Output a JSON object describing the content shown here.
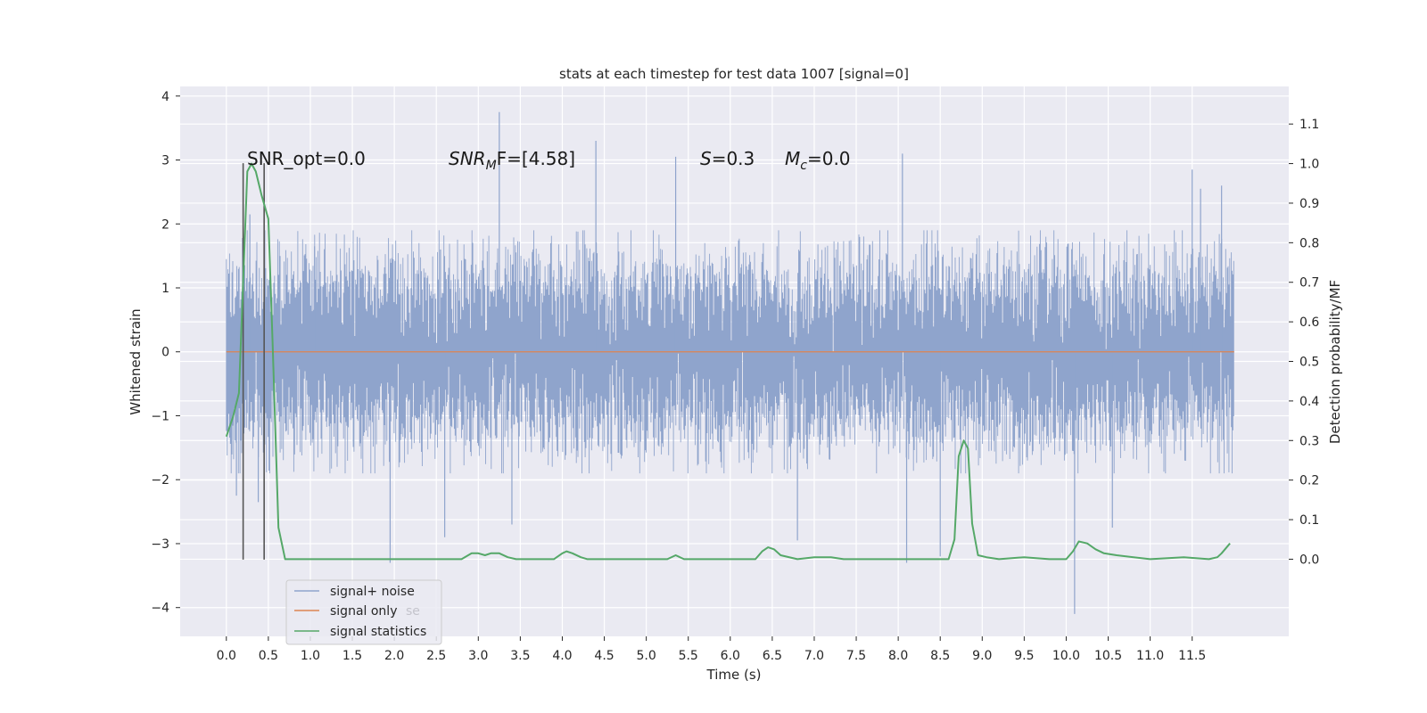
{
  "chart_data": {
    "type": "line",
    "title": "stats at each timestep for test data 1007 [signal=0]",
    "xlabel": "Time (s)",
    "ylabel": "Whitened strain",
    "y2label": "Detection probability/MF",
    "xlim": [
      -0.55,
      12.65
    ],
    "ylim": [
      -4.45,
      4.15
    ],
    "y2lim": [
      -0.195,
      1.195
    ],
    "x_ticks": [
      "0.0",
      "0.5",
      "1.0",
      "1.5",
      "2.0",
      "2.5",
      "3.0",
      "3.5",
      "4.0",
      "4.5",
      "5.0",
      "5.5",
      "6.0",
      "6.5",
      "7.0",
      "7.5",
      "8.0",
      "8.5",
      "9.0",
      "9.5",
      "10.0",
      "10.5",
      "11.0",
      "11.5"
    ],
    "y_ticks": [
      "4",
      "3",
      "2",
      "1",
      "0",
      "−1",
      "−2",
      "−3",
      "−4"
    ],
    "y2_ticks": [
      "1.1",
      "1.0",
      "0.9",
      "0.8",
      "0.7",
      "0.6",
      "0.5",
      "0.4",
      "0.3",
      "0.2",
      "0.1",
      "0.0"
    ],
    "grid": true,
    "legend_position": "lower-left",
    "series": [
      {
        "name": "signal+ noise",
        "color": "#8fa4cc",
        "axis": "left",
        "x_range": [
          0.0,
          12.0
        ],
        "envelope": [
          -1.9,
          1.9
        ],
        "spikes": [
          {
            "x": 0.12,
            "y": -2.25
          },
          {
            "x": 0.28,
            "y": 2.15
          },
          {
            "x": 0.38,
            "y": -2.35
          },
          {
            "x": 1.05,
            "y": 1.65
          },
          {
            "x": 1.95,
            "y": -3.3
          },
          {
            "x": 2.55,
            "y": 1.6
          },
          {
            "x": 2.6,
            "y": -2.9
          },
          {
            "x": 3.25,
            "y": 3.75
          },
          {
            "x": 3.4,
            "y": -2.7
          },
          {
            "x": 4.4,
            "y": 3.3
          },
          {
            "x": 5.35,
            "y": 3.05
          },
          {
            "x": 6.8,
            "y": -2.95
          },
          {
            "x": 8.05,
            "y": 3.1
          },
          {
            "x": 8.1,
            "y": -3.3
          },
          {
            "x": 8.5,
            "y": -3.2
          },
          {
            "x": 10.1,
            "y": -4.1
          },
          {
            "x": 10.55,
            "y": -2.75
          },
          {
            "x": 11.5,
            "y": 2.85
          },
          {
            "x": 11.6,
            "y": 2.55
          },
          {
            "x": 11.85,
            "y": 2.6
          }
        ]
      },
      {
        "name": "signal only",
        "color": "#dd8452",
        "axis": "left",
        "x": [
          0.0,
          12.0
        ],
        "y": [
          0.0,
          0.0
        ]
      },
      {
        "name": "signal statistics",
        "color": "#55a868",
        "axis": "right",
        "x": [
          0.0,
          0.08,
          0.15,
          0.25,
          0.3,
          0.35,
          0.42,
          0.5,
          0.55,
          0.62,
          0.7,
          2.8,
          2.92,
          3.0,
          3.08,
          3.15,
          3.25,
          3.35,
          3.45,
          3.9,
          4.0,
          4.05,
          4.12,
          4.22,
          4.3,
          5.25,
          5.35,
          5.45,
          6.3,
          6.38,
          6.45,
          6.52,
          6.6,
          6.8,
          7.0,
          7.2,
          7.35,
          8.6,
          8.67,
          8.72,
          8.78,
          8.83,
          8.88,
          8.95,
          9.05,
          9.2,
          9.5,
          9.8,
          10.0,
          10.08,
          10.15,
          10.25,
          10.35,
          10.45,
          10.6,
          11.0,
          11.4,
          11.7,
          11.8,
          11.85,
          11.95
        ],
        "y": [
          0.31,
          0.36,
          0.42,
          0.98,
          1.0,
          0.98,
          0.92,
          0.86,
          0.55,
          0.08,
          0.0,
          0.0,
          0.015,
          0.015,
          0.01,
          0.015,
          0.015,
          0.005,
          0.0,
          0.0,
          0.015,
          0.02,
          0.015,
          0.005,
          0.0,
          0.0,
          0.01,
          0.0,
          0.0,
          0.02,
          0.03,
          0.025,
          0.01,
          0.0,
          0.005,
          0.005,
          0.0,
          0.0,
          0.05,
          0.26,
          0.3,
          0.28,
          0.09,
          0.01,
          0.005,
          0.0,
          0.005,
          0.0,
          0.0,
          0.02,
          0.045,
          0.04,
          0.025,
          0.015,
          0.01,
          0.0,
          0.005,
          0.0,
          0.005,
          0.015,
          0.04
        ]
      }
    ],
    "vlines": [
      {
        "x": 0.2,
        "ymin": -3.25,
        "ymax": 2.95,
        "color": "#555555"
      },
      {
        "x": 0.45,
        "ymin": -3.25,
        "ymax": 2.95,
        "color": "#555555"
      }
    ],
    "annotations": {
      "snr_opt": "SNR_opt=0.0",
      "snr_mf_sym": "SNR",
      "snr_mf_sub": "M",
      "snr_mf_rest": "F=[4.58]",
      "s_sym": "S",
      "s_rest": "=0.3",
      "mc_sym": "M",
      "mc_sub": "c",
      "mc_rest": "=0.0"
    },
    "legend_ghost_text": "se"
  }
}
